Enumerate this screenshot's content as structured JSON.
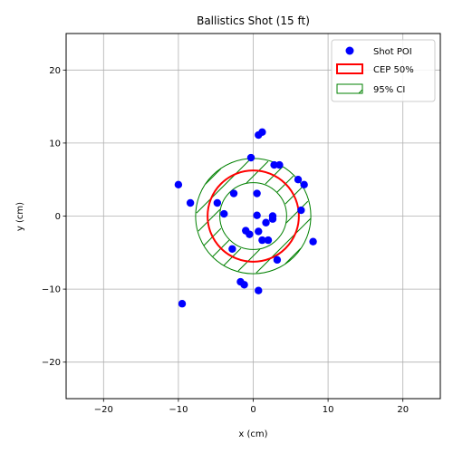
{
  "chart_data": {
    "type": "scatter",
    "title": "Ballistics Shot (15 ft)",
    "xlabel": "x (cm)",
    "ylabel": "y (cm)",
    "xlim": [
      -25,
      25
    ],
    "ylim": [
      -25,
      25
    ],
    "xticks": [
      -20,
      -10,
      0,
      10,
      20
    ],
    "yticks": [
      -20,
      -10,
      0,
      10,
      20
    ],
    "grid": true,
    "legend_position": "top-right",
    "series": [
      {
        "name": "Shot POI",
        "color": "#0000ff",
        "points": [
          [
            1.2,
            11.5
          ],
          [
            0.7,
            11.1
          ],
          [
            -0.3,
            8.0
          ],
          [
            2.8,
            7.0
          ],
          [
            3.5,
            7.0
          ],
          [
            6.0,
            5.0
          ],
          [
            6.8,
            4.3
          ],
          [
            -10.0,
            4.3
          ],
          [
            -2.6,
            3.1
          ],
          [
            0.5,
            3.1
          ],
          [
            -8.4,
            1.8
          ],
          [
            -4.8,
            1.8
          ],
          [
            -3.9,
            0.3
          ],
          [
            6.4,
            0.8
          ],
          [
            0.5,
            0.1
          ],
          [
            2.6,
            0.0
          ],
          [
            2.6,
            -0.4
          ],
          [
            1.7,
            -0.9
          ],
          [
            -1.0,
            -2.0
          ],
          [
            -0.5,
            -2.5
          ],
          [
            0.7,
            -2.1
          ],
          [
            1.2,
            -3.3
          ],
          [
            2.0,
            -3.3
          ],
          [
            8.0,
            -3.5
          ],
          [
            -2.8,
            -4.5
          ],
          [
            3.2,
            -6.0
          ],
          [
            -1.7,
            -9.0
          ],
          [
            -1.2,
            -9.4
          ],
          [
            0.7,
            -10.2
          ],
          [
            -9.5,
            -12.0
          ]
        ]
      }
    ],
    "circles": [
      {
        "name": "CEP 50%",
        "center": [
          0,
          0
        ],
        "radius": 6.1,
        "color": "#ff0000",
        "style": "solid"
      },
      {
        "name": "95% CI",
        "center": [
          0,
          0
        ],
        "radius": 7.7,
        "color": "#008000",
        "style": "hatched"
      }
    ],
    "legend": [
      "Shot POI",
      "CEP 50%",
      "95% CI"
    ]
  }
}
